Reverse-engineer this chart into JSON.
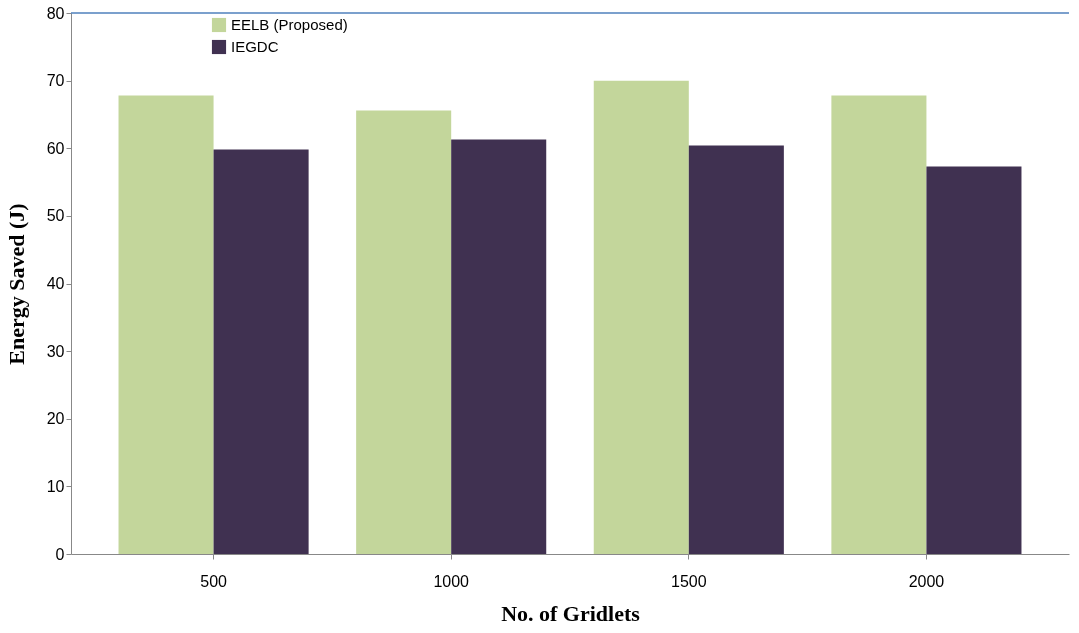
{
  "chart_data": {
    "type": "bar",
    "xlabel": "No. of Gridlets",
    "ylabel": "Energy Saved (J)",
    "categories": [
      "500",
      "1000",
      "1500",
      "2000"
    ],
    "series": [
      {
        "name": "EELB (Proposed)",
        "color": "#c3d69b",
        "values": [
          67.8,
          65.6,
          70.0,
          67.8
        ]
      },
      {
        "name": "IEGDC",
        "color": "#403151",
        "values": [
          59.8,
          61.3,
          60.4,
          57.3
        ]
      }
    ],
    "ylim": [
      0,
      80
    ],
    "yticks": [
      0,
      10,
      20,
      30,
      40,
      50,
      60,
      70,
      80
    ],
    "grid": false,
    "legend": "top left",
    "ref_lines": [
      {
        "axis": "y",
        "value": 80,
        "label": null,
        "color": "#4f81bd"
      }
    ]
  }
}
